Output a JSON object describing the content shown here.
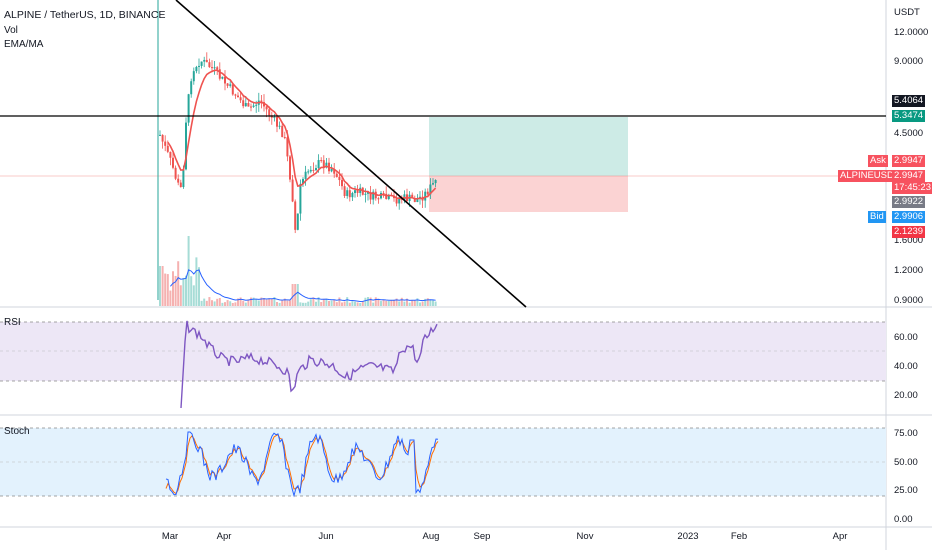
{
  "header": {
    "symbol_line": "ALPINE / TetherUS, 1D, BINANCE",
    "indicator_vol": "Vol",
    "indicator_ema": "EMA/MA"
  },
  "panes": {
    "rsi_title": "RSI",
    "stoch_title": "Stoch"
  },
  "price_axis": {
    "currency": "USDT",
    "labels": [
      "12.0000",
      "9.0000",
      "4.5000",
      "1.6000",
      "1.2000",
      "0.9000"
    ],
    "tags": {
      "resistance": "5.4064",
      "target": "5.3474",
      "ask_label": "Ask",
      "ask_value": "2.9947",
      "symbol": "ALPINEUSDT",
      "last_price": "2.9947",
      "countdown": "17:45:23",
      "ema": "2.9922",
      "bid_label": "Bid",
      "bid_value": "2.9906",
      "stop": "2.1239"
    }
  },
  "rsi_axis": {
    "labels": [
      "60.00",
      "40.00",
      "20.00"
    ]
  },
  "stoch_axis": {
    "labels": [
      "75.00",
      "50.00",
      "25.00",
      "0.00"
    ]
  },
  "time_axis": {
    "labels": [
      "Mar",
      "Apr",
      "Jun",
      "Aug",
      "Sep",
      "Nov",
      "2023",
      "Feb",
      "Apr"
    ]
  },
  "colors": {
    "up": "#26a69a",
    "down": "#ef5350",
    "ema": "#ef5350",
    "vol_ma": "#2962ff",
    "rsi_line": "#7e57c2",
    "stoch_k": "#2962ff",
    "stoch_d": "#ff6d00",
    "tp_zone": "#cdebe6",
    "sl_zone": "#fbd3d3"
  }
}
